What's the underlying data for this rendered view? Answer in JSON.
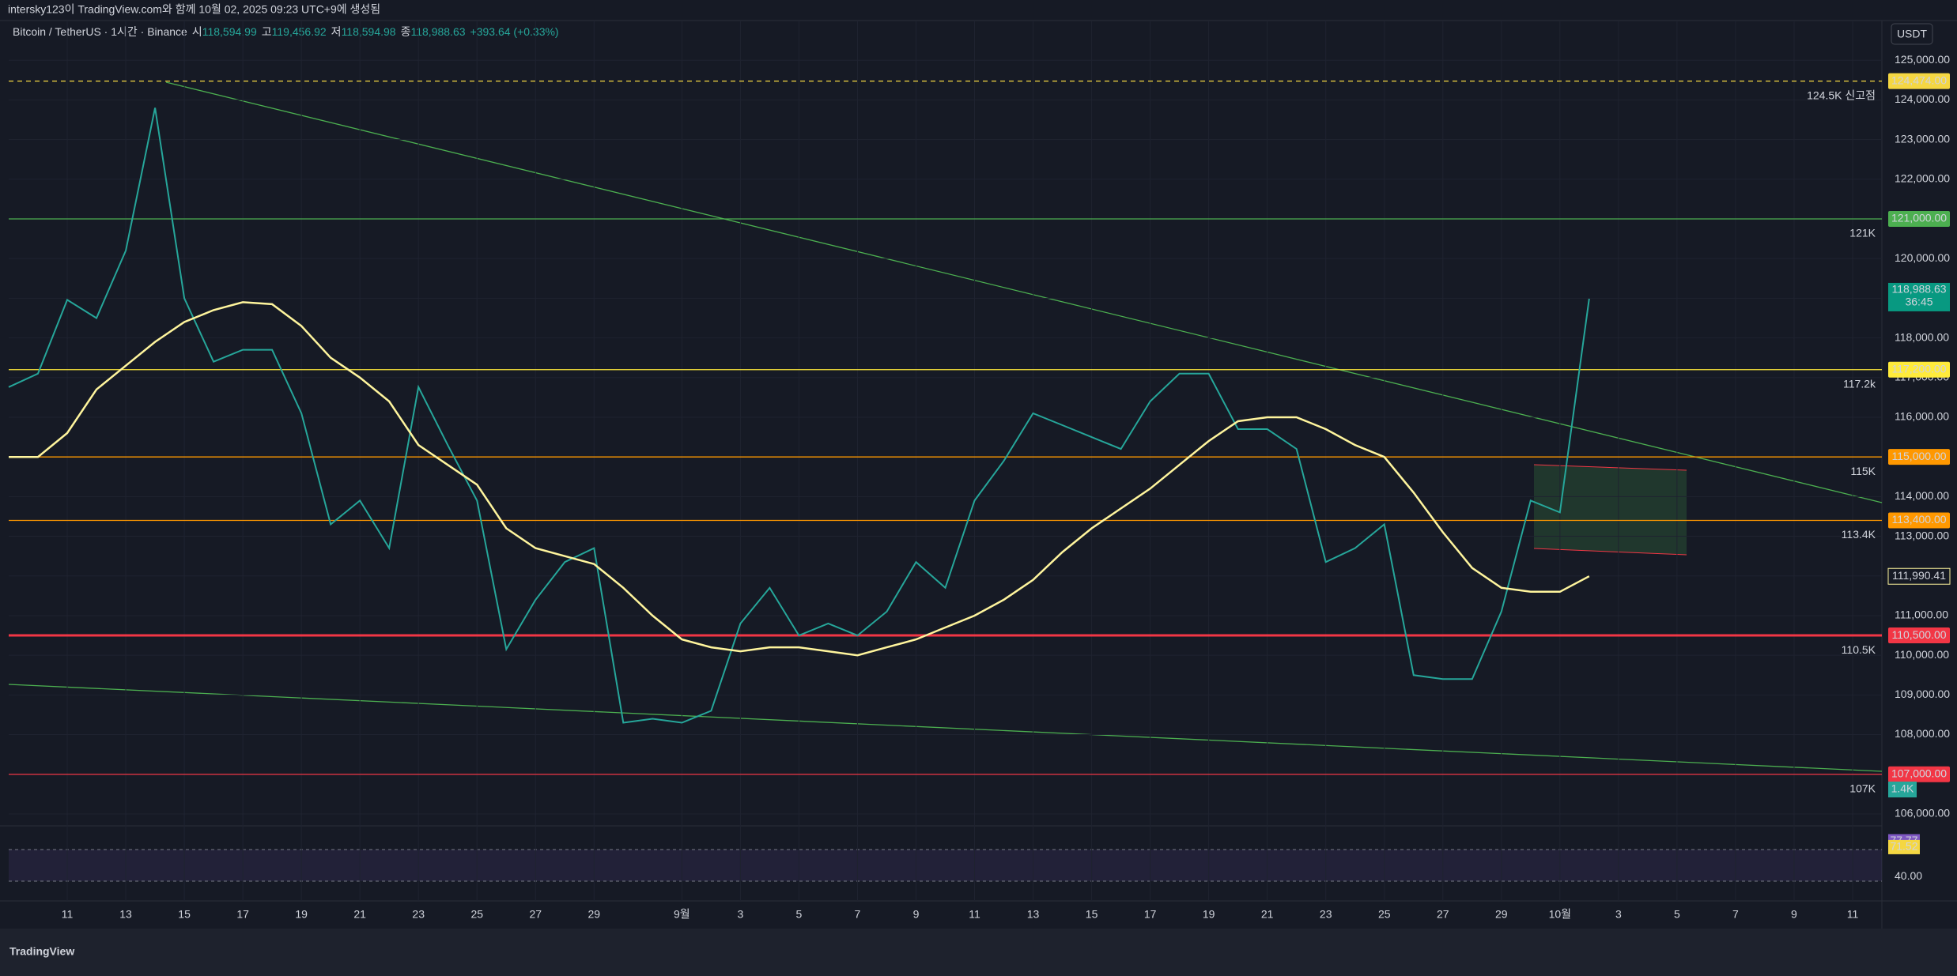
{
  "header": "intersky123이 TradingView.com와 함께 10월 02, 2025 09:23 UTC+9에 생성됨",
  "symbol": {
    "name": "Bitcoin / TetherUS · 1시간 · Binance",
    "open_label": "시",
    "open": "118,594.99",
    "high_label": "고",
    "high": "119,456.92",
    "low_label": "저",
    "low": "118,594.98",
    "close_label": "종",
    "close": "118,988.63",
    "change": "+393.64 (+0.33%)"
  },
  "currency": "USDT",
  "brand": "TradingView",
  "chart_data": {
    "type": "line",
    "xlim": [
      "2025-08-09",
      "2025-10-12"
    ],
    "ylim": [
      105700,
      126000
    ],
    "yticks": [
      {
        "value": 106000,
        "label": "106,000.00"
      },
      {
        "value": 107000,
        "label": "107,000.00"
      },
      {
        "value": 108000,
        "label": "108,000.00"
      },
      {
        "value": 109000,
        "label": "109,000.00"
      },
      {
        "value": 110000,
        "label": "110,000.00"
      },
      {
        "value": 111000,
        "label": "111,000.00"
      },
      {
        "value": 112000,
        "label": "112,000.00"
      },
      {
        "value": 113000,
        "label": "113,000.00"
      },
      {
        "value": 114000,
        "label": "114,000.00"
      },
      {
        "value": 115000,
        "label": "115,000.00"
      },
      {
        "value": 116000,
        "label": "116,000.00"
      },
      {
        "value": 117000,
        "label": "117,000.00"
      },
      {
        "value": 118000,
        "label": "118,000.00"
      },
      {
        "value": 119000,
        "label": "119,000.00"
      },
      {
        "value": 120000,
        "label": "120,000.00"
      },
      {
        "value": 121000,
        "label": "121,000.00"
      },
      {
        "value": 122000,
        "label": "122,000.00"
      },
      {
        "value": 123000,
        "label": "123,000.00"
      },
      {
        "value": 124000,
        "label": "124,000.00"
      },
      {
        "value": 125000,
        "label": "125,000.00"
      }
    ],
    "xticks": [
      {
        "value": "2025-08-11",
        "label": "11"
      },
      {
        "value": "2025-08-13",
        "label": "13"
      },
      {
        "value": "2025-08-15",
        "label": "15"
      },
      {
        "value": "2025-08-17",
        "label": "17"
      },
      {
        "value": "2025-08-19",
        "label": "19"
      },
      {
        "value": "2025-08-21",
        "label": "21"
      },
      {
        "value": "2025-08-23",
        "label": "23"
      },
      {
        "value": "2025-08-25",
        "label": "25"
      },
      {
        "value": "2025-08-27",
        "label": "27"
      },
      {
        "value": "2025-08-29",
        "label": "29"
      },
      {
        "value": "2025-09-01",
        "label": "9월"
      },
      {
        "value": "2025-09-03",
        "label": "3"
      },
      {
        "value": "2025-09-05",
        "label": "5"
      },
      {
        "value": "2025-09-07",
        "label": "7"
      },
      {
        "value": "2025-09-09",
        "label": "9"
      },
      {
        "value": "2025-09-11",
        "label": "11"
      },
      {
        "value": "2025-09-13",
        "label": "13"
      },
      {
        "value": "2025-09-15",
        "label": "15"
      },
      {
        "value": "2025-09-17",
        "label": "17"
      },
      {
        "value": "2025-09-19",
        "label": "19"
      },
      {
        "value": "2025-09-21",
        "label": "21"
      },
      {
        "value": "2025-09-23",
        "label": "23"
      },
      {
        "value": "2025-09-25",
        "label": "25"
      },
      {
        "value": "2025-09-27",
        "label": "27"
      },
      {
        "value": "2025-09-29",
        "label": "29"
      },
      {
        "value": "2025-10-01",
        "label": "10월"
      },
      {
        "value": "2025-10-03",
        "label": "3"
      },
      {
        "value": "2025-10-05",
        "label": "5"
      },
      {
        "value": "2025-10-07",
        "label": "7"
      },
      {
        "value": "2025-10-09",
        "label": "9"
      },
      {
        "value": "2025-10-11",
        "label": "11"
      }
    ],
    "x": [
      "2025-08-09",
      "2025-08-10",
      "2025-08-11",
      "2025-08-12",
      "2025-08-13",
      "2025-08-14",
      "2025-08-15",
      "2025-08-16",
      "2025-08-17",
      "2025-08-18",
      "2025-08-19",
      "2025-08-20",
      "2025-08-21",
      "2025-08-22",
      "2025-08-23",
      "2025-08-24",
      "2025-08-25",
      "2025-08-26",
      "2025-08-27",
      "2025-08-28",
      "2025-08-29",
      "2025-08-30",
      "2025-08-31",
      "2025-09-01",
      "2025-09-02",
      "2025-09-03",
      "2025-09-04",
      "2025-09-05",
      "2025-09-06",
      "2025-09-07",
      "2025-09-08",
      "2025-09-09",
      "2025-09-10",
      "2025-09-11",
      "2025-09-12",
      "2025-09-13",
      "2025-09-14",
      "2025-09-15",
      "2025-09-16",
      "2025-09-17",
      "2025-09-18",
      "2025-09-19",
      "2025-09-20",
      "2025-09-21",
      "2025-09-22",
      "2025-09-23",
      "2025-09-24",
      "2025-09-25",
      "2025-09-26",
      "2025-09-27",
      "2025-09-28",
      "2025-09-29",
      "2025-09-30",
      "2025-10-01",
      "2025-10-02"
    ],
    "series": [
      {
        "color": "#26a69a",
        "values": [
          116760,
          117100,
          118960,
          118500,
          120200,
          123800,
          119000,
          117400,
          117700,
          117700,
          116100,
          113300,
          113900,
          112700,
          116760,
          115300,
          113900,
          110150,
          111400,
          112350,
          112700,
          108300,
          108400,
          108300,
          108600,
          110800,
          111700,
          110500,
          110800,
          110500,
          111100,
          112350,
          111700,
          113900,
          114900,
          116100,
          115800,
          115500,
          115200,
          116400,
          117100,
          117100,
          115700,
          115700,
          115200,
          112350,
          112700,
          113300,
          109500,
          109400,
          109400,
          111100,
          113900,
          113600,
          118988.63
        ]
      },
      {
        "color": "#fff59d",
        "values": [
          115000,
          115000,
          115600,
          116700,
          117300,
          117900,
          118400,
          118700,
          118900,
          118850,
          118300,
          117500,
          117000,
          116400,
          115300,
          114800,
          114300,
          113200,
          112700,
          112500,
          112300,
          111700,
          111000,
          110400,
          110200,
          110100,
          110200,
          110200,
          110100,
          110000,
          110200,
          110400,
          110700,
          111000,
          111400,
          111900,
          112600,
          113200,
          113700,
          114200,
          114800,
          115400,
          115900,
          116000,
          116000,
          115700,
          115300,
          115000,
          114100,
          113100,
          112200,
          111700,
          111600,
          111600,
          111990.41
        ]
      }
    ],
    "levels": [
      {
        "value": 124474,
        "price_label": "124,474.00",
        "label": "124.5K 신고점",
        "color": "#f5d742",
        "dashed": true
      },
      {
        "value": 121000,
        "price_label": "121,000.00",
        "label": "121K",
        "color": "#4caf50",
        "dashed": false
      },
      {
        "value": 117200,
        "price_label": "117,200.00",
        "label": "117.2k",
        "color": "#ffeb3b",
        "dashed": false
      },
      {
        "value": 115000,
        "price_label": "115,000.00",
        "label": "115K",
        "color": "#ff9800",
        "dashed": false
      },
      {
        "value": 113400,
        "price_label": "113,400.00",
        "label": "113.4K",
        "color": "#ff9800",
        "dashed": false
      },
      {
        "value": 110500,
        "price_label": "110,500.00",
        "label": "110.5K",
        "color": "#f23645",
        "dashed": false
      },
      {
        "value": 107000,
        "price_label": "107,000.00",
        "label": "107K",
        "color": "#f23645",
        "dashed": false
      }
    ],
    "last": {
      "value": 118988.63,
      "label": "118,988.63",
      "countdown": "36:45",
      "color": "#089981"
    },
    "ma_last": {
      "value": 111990.41,
      "label": "111,990.41"
    },
    "volume": {
      "value": 1400,
      "label": "1.4K"
    },
    "rsi": {
      "ylim": [
        20,
        90
      ],
      "values": [
        77.77,
        71.52
      ],
      "value_labels": [
        "77.77",
        "71.52"
      ],
      "colors": [
        "#7e57c2",
        "#f5d742"
      ],
      "yticks": [
        {
          "value": 40,
          "label": "40.00"
        }
      ]
    }
  }
}
